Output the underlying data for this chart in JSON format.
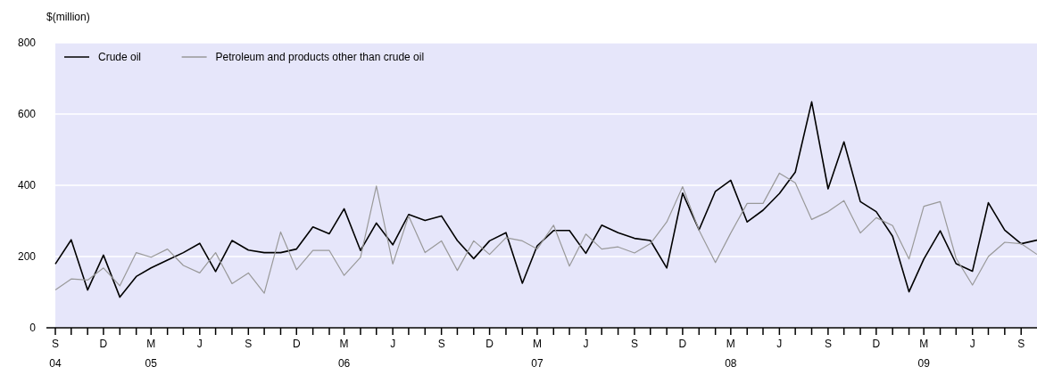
{
  "chart_data": {
    "type": "line",
    "ylabel": "$(million)",
    "x": [
      "2004-09",
      "2004-10",
      "2004-11",
      "2004-12",
      "2005-01",
      "2005-02",
      "2005-03",
      "2005-04",
      "2005-05",
      "2005-06",
      "2005-07",
      "2005-08",
      "2005-09",
      "2005-10",
      "2005-11",
      "2005-12",
      "2006-01",
      "2006-02",
      "2006-03",
      "2006-04",
      "2006-05",
      "2006-06",
      "2006-07",
      "2006-08",
      "2006-09",
      "2006-10",
      "2006-11",
      "2006-12",
      "2007-01",
      "2007-02",
      "2007-03",
      "2007-04",
      "2007-05",
      "2007-06",
      "2007-07",
      "2007-08",
      "2007-09",
      "2007-10",
      "2007-11",
      "2007-12",
      "2008-01",
      "2008-02",
      "2008-03",
      "2008-04",
      "2008-05",
      "2008-06",
      "2008-07",
      "2008-08",
      "2008-09",
      "2008-10",
      "2008-11",
      "2008-12",
      "2009-01",
      "2009-02",
      "2009-03",
      "2009-04",
      "2009-05",
      "2009-06",
      "2009-07",
      "2009-08",
      "2009-09",
      "2009-10"
    ],
    "series": [
      {
        "name": "Crude oil",
        "color": "#000000",
        "values": [
          179,
          247,
          106,
          204,
          86,
          144,
          168,
          190,
          211,
          237,
          158,
          245,
          218,
          211,
          211,
          221,
          283,
          264,
          334,
          217,
          294,
          233,
          318,
          301,
          314,
          245,
          194,
          244,
          267,
          125,
          230,
          273,
          273,
          209,
          288,
          267,
          251,
          245,
          168,
          378,
          275,
          383,
          414,
          297,
          330,
          377,
          437,
          634,
          390,
          522,
          354,
          326,
          257,
          101,
          193,
          272,
          180,
          159,
          351,
          274,
          236,
          246
        ]
      },
      {
        "name": "Petroleum and products other than crude oil",
        "color": "#999999",
        "values": [
          106,
          137,
          134,
          168,
          118,
          211,
          198,
          221,
          175,
          154,
          211,
          124,
          154,
          97,
          269,
          163,
          217,
          217,
          147,
          198,
          398,
          179,
          314,
          211,
          244,
          161,
          244,
          206,
          253,
          244,
          221,
          288,
          173,
          263,
          221,
          227,
          210,
          236,
          297,
          396,
          274,
          183,
          266,
          349,
          349,
          434,
          407,
          304,
          326,
          357,
          266,
          309,
          287,
          193,
          341,
          354,
          195,
          120,
          200,
          240,
          236,
          206
        ]
      }
    ],
    "xlim": [
      "2004-09",
      "2009-10"
    ],
    "xticks": [
      {
        "value": "2004-09",
        "label": "S\n04"
      },
      {
        "value": "2004-10",
        "label": null
      },
      {
        "value": "2004-11",
        "label": null
      },
      {
        "value": "2004-12",
        "label": "D"
      },
      {
        "value": "2005-01",
        "label": null
      },
      {
        "value": "2005-02",
        "label": null
      },
      {
        "value": "2005-03",
        "label": "M\n05"
      },
      {
        "value": "2005-04",
        "label": null
      },
      {
        "value": "2005-05",
        "label": null
      },
      {
        "value": "2005-06",
        "label": "J"
      },
      {
        "value": "2005-07",
        "label": null
      },
      {
        "value": "2005-08",
        "label": null
      },
      {
        "value": "2005-09",
        "label": "S"
      },
      {
        "value": "2005-10",
        "label": null
      },
      {
        "value": "2005-11",
        "label": null
      },
      {
        "value": "2005-12",
        "label": "D"
      },
      {
        "value": "2006-01",
        "label": null
      },
      {
        "value": "2006-02",
        "label": null
      },
      {
        "value": "2006-03",
        "label": "M\n06"
      },
      {
        "value": "2006-04",
        "label": null
      },
      {
        "value": "2006-05",
        "label": null
      },
      {
        "value": "2006-06",
        "label": "J"
      },
      {
        "value": "2006-07",
        "label": null
      },
      {
        "value": "2006-08",
        "label": null
      },
      {
        "value": "2006-09",
        "label": "S"
      },
      {
        "value": "2006-10",
        "label": null
      },
      {
        "value": "2006-11",
        "label": null
      },
      {
        "value": "2006-12",
        "label": "D"
      },
      {
        "value": "2007-01",
        "label": null
      },
      {
        "value": "2007-02",
        "label": null
      },
      {
        "value": "2007-03",
        "label": "M\n07"
      },
      {
        "value": "2007-04",
        "label": null
      },
      {
        "value": "2007-05",
        "label": null
      },
      {
        "value": "2007-06",
        "label": "J"
      },
      {
        "value": "2007-07",
        "label": null
      },
      {
        "value": "2007-08",
        "label": null
      },
      {
        "value": "2007-09",
        "label": "S"
      },
      {
        "value": "2007-10",
        "label": null
      },
      {
        "value": "2007-11",
        "label": null
      },
      {
        "value": "2007-12",
        "label": "D"
      },
      {
        "value": "2008-01",
        "label": null
      },
      {
        "value": "2008-02",
        "label": null
      },
      {
        "value": "2008-03",
        "label": "M\n08"
      },
      {
        "value": "2008-04",
        "label": null
      },
      {
        "value": "2008-05",
        "label": null
      },
      {
        "value": "2008-06",
        "label": "J"
      },
      {
        "value": "2008-07",
        "label": null
      },
      {
        "value": "2008-08",
        "label": null
      },
      {
        "value": "2008-09",
        "label": "S"
      },
      {
        "value": "2008-10",
        "label": null
      },
      {
        "value": "2008-11",
        "label": null
      },
      {
        "value": "2008-12",
        "label": "D"
      },
      {
        "value": "2009-01",
        "label": null
      },
      {
        "value": "2009-02",
        "label": null
      },
      {
        "value": "2009-03",
        "label": "M\n09"
      },
      {
        "value": "2009-04",
        "label": null
      },
      {
        "value": "2009-05",
        "label": null
      },
      {
        "value": "2009-06",
        "label": "J"
      },
      {
        "value": "2009-07",
        "label": null
      },
      {
        "value": "2009-08",
        "label": null
      },
      {
        "value": "2009-09",
        "label": "S"
      }
    ],
    "ylim": [
      0,
      800
    ],
    "yticks": [
      0,
      200,
      400,
      600,
      800
    ],
    "grid": "y",
    "legend": "top left"
  }
}
